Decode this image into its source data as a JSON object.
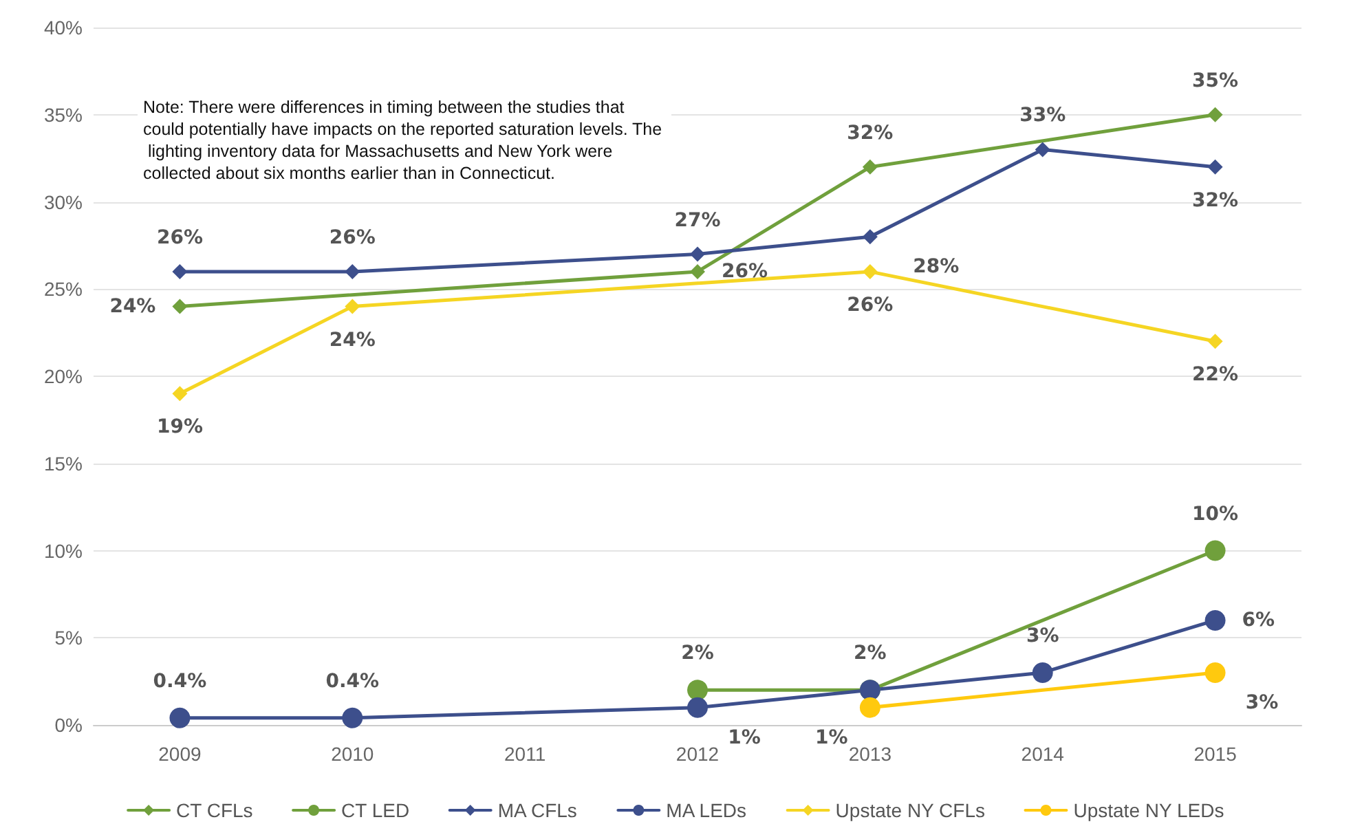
{
  "chart_data": {
    "type": "line",
    "categories": [
      "2009",
      "2010",
      "2011",
      "2012",
      "2013",
      "2014",
      "2015"
    ],
    "ylim": [
      0,
      40
    ],
    "yticks": [
      {
        "value": 0,
        "label": "0%"
      },
      {
        "value": 5,
        "label": "5%"
      },
      {
        "value": 10,
        "label": "10%"
      },
      {
        "value": 15,
        "label": "15%"
      },
      {
        "value": 20,
        "label": "20%"
      },
      {
        "value": 25,
        "label": "25%"
      },
      {
        "value": 30,
        "label": "30%"
      },
      {
        "value": 35,
        "label": "35%"
      },
      {
        "value": 40,
        "label": "40%"
      }
    ],
    "grid": "y",
    "legend": "bottom",
    "line_style": "solid",
    "annotations": [
      "Note: There were differences in timing between the studies that could potentially have impacts on the reported saturation levels. The lighting inventory data for Massachusetts and New York were collected about six months earlier than in Connecticut."
    ],
    "series": [
      {
        "name": "CT CFLs",
        "color": "#70a03c",
        "marker": "diamond",
        "values": [
          24,
          null,
          null,
          26,
          32,
          null,
          35
        ],
        "value_labels": [
          "24%",
          null,
          null,
          "26%",
          "32%",
          null,
          "35%"
        ]
      },
      {
        "name": "CT LED",
        "color": "#70a03c",
        "marker": "circle",
        "values": [
          null,
          null,
          null,
          2,
          2,
          null,
          10
        ],
        "value_labels": [
          null,
          null,
          null,
          "2%",
          "2%",
          null,
          "10%"
        ]
      },
      {
        "name": "MA CFLs",
        "color": "#3d4f8c",
        "marker": "diamond",
        "values": [
          26,
          26,
          null,
          27,
          28,
          33,
          32
        ],
        "value_labels": [
          "26%",
          "26%",
          null,
          "27%",
          "28%",
          "33%",
          "32%"
        ]
      },
      {
        "name": "MA LEDs",
        "color": "#3d4f8c",
        "marker": "circle",
        "values": [
          0.4,
          0.4,
          null,
          1,
          2,
          3,
          6
        ],
        "value_labels": [
          "0.4%",
          "0.4%",
          null,
          "1%",
          null,
          "3%",
          "6%"
        ]
      },
      {
        "name": "Upstate NY CFLs",
        "color": "#f5d523",
        "marker": "diamond",
        "values": [
          19,
          24,
          null,
          null,
          26,
          null,
          22
        ],
        "value_labels": [
          "19%",
          "24%",
          null,
          null,
          "26%",
          null,
          "22%"
        ]
      },
      {
        "name": "Upstate NY LEDs",
        "color": "#ffc90e",
        "marker": "circle",
        "values": [
          null,
          null,
          null,
          null,
          1,
          null,
          3
        ],
        "value_labels": [
          null,
          null,
          null,
          null,
          "1%",
          null,
          "3%"
        ]
      }
    ]
  }
}
